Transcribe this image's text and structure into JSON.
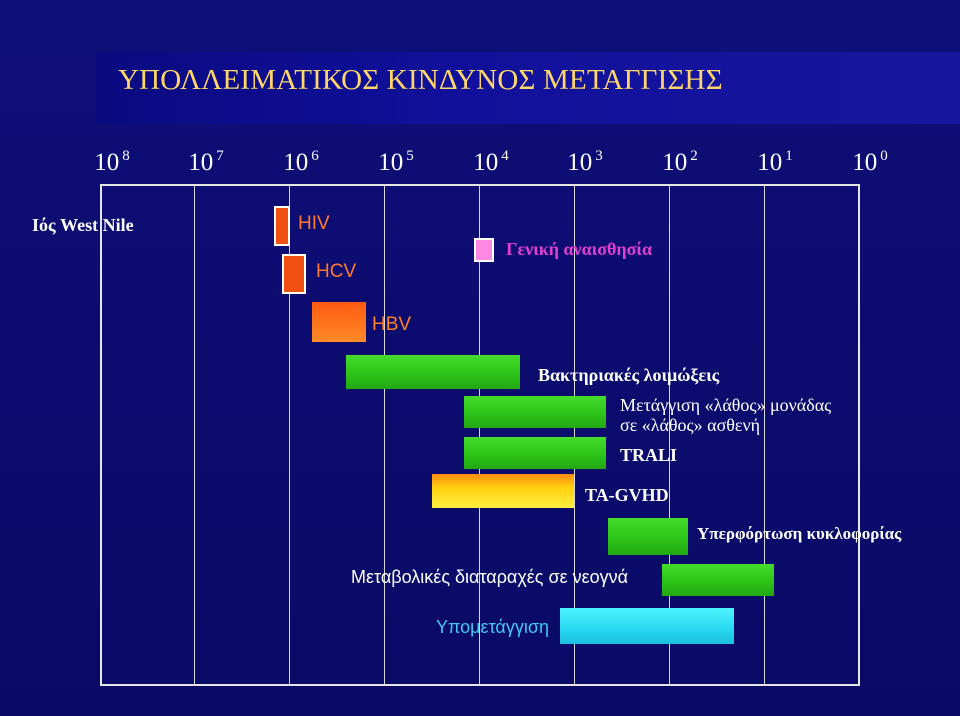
{
  "title": "ΥΠΟΛΛΕΙΜΑΤΙΚΟΣ ΚΙΝΔΥΝΟΣ ΜΕΤΑΓΓΙΣΗΣ",
  "scale": [
    {
      "base": "10",
      "exp": "8"
    },
    {
      "base": "10",
      "exp": "7"
    },
    {
      "base": "10",
      "exp": "6"
    },
    {
      "base": "10",
      "exp": "5"
    },
    {
      "base": "10",
      "exp": "4"
    },
    {
      "base": "10",
      "exp": "3"
    },
    {
      "base": "10",
      "exp": "2"
    },
    {
      "base": "10",
      "exp": "1"
    },
    {
      "base": "10",
      "exp": "0"
    }
  ],
  "risks": {
    "west_nile": "Ιός West Nile",
    "hiv": "HIV",
    "hcv": "HCV",
    "anesthesia": "Γενική αναισθησία",
    "hbv": "HBV",
    "bacterial": "Βακτηριακές λοιμώξεις",
    "wrong_unit_line1": "Μετάγγιση «λάθος» μονάδας",
    "wrong_unit_line2": "σε «λάθος» ασθενή",
    "trali": "TRALI",
    "ta_gvhd": "TA-GVHD",
    "overload": "Υπερφόρτωση κυκλοφορίας",
    "metabolic": "Μεταβολικές διαταραχές σε νεογνά",
    "undertransfusion": "Υπομετάγγιση"
  },
  "colors": {
    "background": "#0b0b6e",
    "title": "#ffd66b",
    "viral": "#f05010",
    "anesthesia": "#ff88e0",
    "green": "#2cc418",
    "gvhd": "#ffd010",
    "undertransfusion": "#28d8f0",
    "anesthesia_text": "#e040d0",
    "undertransfusion_text": "#40c8f0",
    "hbv_text": "#ff8020"
  }
}
